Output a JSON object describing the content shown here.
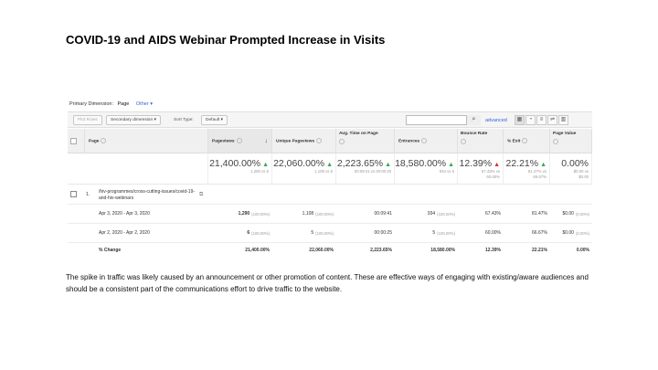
{
  "slide": {
    "title": "COVID-19 and AIDS Webinar Prompted Increase in Visits",
    "body": "The spike in traffic was likely caused by an announcement or other promotion of content. These are effective ways of engaging with existing/aware audiences and should be a consistent part of the communications effort to drive traffic to the website."
  },
  "report": {
    "primary_dimension_label": "Primary Dimension:",
    "primary_dimension_value": "Page",
    "other_link": "Other ▾",
    "toolbar": {
      "plot_rows": "Plot Rows",
      "secondary_dimension": "Secondary dimension ▾",
      "sort_type_label": "Sort Type:",
      "sort_type_value": "Default ▾",
      "search_placeholder": "",
      "search_icon": "search-icon",
      "advanced_link": "advanced",
      "view_icons": [
        "grid-view-icon",
        "list-view-icon",
        "bar-view-icon",
        "compare-view-icon",
        "pivot-view-icon"
      ]
    },
    "columns": {
      "page": "Page",
      "pageviews": "Pageviews",
      "unique_pageviews": "Unique Pageviews",
      "avg_time": "Avg. Time on Page",
      "entrances": "Entrances",
      "bounce_rate": "Bounce Rate",
      "exit": "% Exit",
      "page_value": "Page Value",
      "sort_arrow": "↓"
    },
    "summary": {
      "pageviews": {
        "value": "21,400.00%",
        "dir": "up",
        "sub": [
          "1,290 vs 6"
        ]
      },
      "unique_pageviews": {
        "value": "22,060.00%",
        "dir": "up",
        "sub": [
          "1,108 vs 5"
        ]
      },
      "avg_time": {
        "value": "2,223.65%",
        "dir": "up",
        "sub": [
          "00:09:41 vs 00:00:25"
        ]
      },
      "entrances": {
        "value": "18,580.00%",
        "dir": "up",
        "sub": [
          "934 vs 5"
        ]
      },
      "bounce_rate": {
        "value": "12.39%",
        "dir": "down",
        "sub": [
          "67.43% vs",
          "60.00%"
        ]
      },
      "exit": {
        "value": "22.21%",
        "dir": "up",
        "sub": [
          "81.47% vs",
          "66.67%"
        ]
      },
      "page_value": {
        "value": "0.00%",
        "dir": "none",
        "sub": [
          "$0.00 vs",
          "$0.00"
        ]
      }
    },
    "page_row": {
      "index": "1.",
      "path": "/hiv-programmes/cross-cutting-issues/covid-19-and-hiv-webinars",
      "copy_icon": "copy-icon"
    },
    "rows": [
      {
        "label": "Apr 3, 2020 - Apr 3, 2020",
        "pageviews": "1,290",
        "pageviews_pct": "(100.00%)",
        "unique_pageviews": "1,108",
        "unique_pct": "(100.00%)",
        "avg_time": "00:09:41",
        "entrances": "934",
        "entrances_pct": "(100.00%)",
        "bounce_rate": "67.43%",
        "exit": "81.47%",
        "page_value": "$0.00",
        "page_value_pct": "(0.00%)"
      },
      {
        "label": "Apr 2, 2020 - Apr 2, 2020",
        "pageviews": "6",
        "pageviews_pct": "(100.00%)",
        "unique_pageviews": "5",
        "unique_pct": "(100.00%)",
        "avg_time": "00:00:25",
        "entrances": "5",
        "entrances_pct": "(100.00%)",
        "bounce_rate": "60.00%",
        "exit": "66.67%",
        "page_value": "$0.00",
        "page_value_pct": "(0.00%)"
      }
    ],
    "change_row": {
      "label": "% Change",
      "pageviews": "21,400.00%",
      "unique_pageviews": "22,060.00%",
      "avg_time": "2,223.65%",
      "entrances": "18,580.00%",
      "bounce_rate": "12.39%",
      "exit": "22.21%",
      "page_value": "0.00%"
    },
    "colors": {
      "link": "#3367d6",
      "up_arrow": "#34a853",
      "down_arrow": "#d93025"
    }
  }
}
